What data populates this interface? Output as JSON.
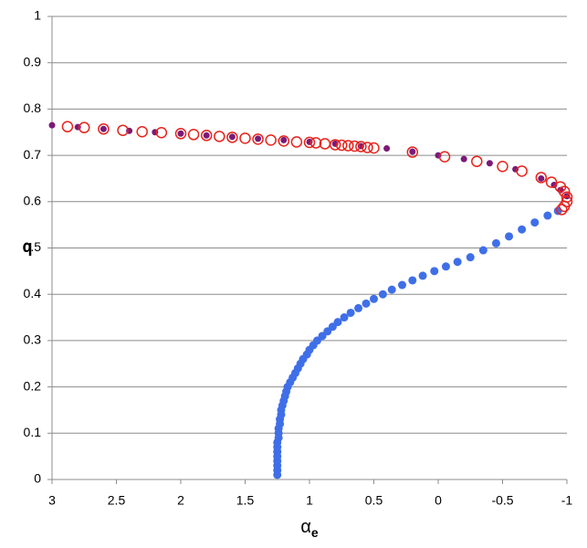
{
  "chart_data": {
    "type": "scatter",
    "x_label": "α",
    "x_label_subscript": "e",
    "y_label": "q",
    "xlim": [
      3,
      -1
    ],
    "ylim": [
      0,
      1
    ],
    "xticks": [
      3,
      2.5,
      2,
      1.5,
      1,
      0.5,
      0,
      -0.5,
      -1
    ],
    "yticks": [
      0,
      0.1,
      0.2,
      0.3,
      0.4,
      0.5,
      0.6,
      0.7,
      0.8,
      0.9,
      1
    ],
    "grid": true,
    "series": [
      {
        "color": "#3f6fe8",
        "marker": "filled",
        "size": 4.5,
        "x": [
          1.25,
          1.25,
          1.25,
          1.25,
          1.25,
          1.25,
          1.25,
          1.25,
          1.24,
          1.24,
          1.24,
          1.23,
          1.23,
          1.22,
          1.22,
          1.21,
          1.2,
          1.19,
          1.18,
          1.17,
          1.15,
          1.13,
          1.11,
          1.09,
          1.07,
          1.05,
          1.02,
          1.0,
          0.97,
          0.94,
          0.9,
          0.86,
          0.82,
          0.78,
          0.73,
          0.68,
          0.62,
          0.56,
          0.5,
          0.43,
          0.36,
          0.28,
          0.2,
          0.12,
          0.03,
          -0.06,
          -0.15,
          -0.25,
          -0.35,
          -0.45,
          -0.55,
          -0.65,
          -0.75,
          -0.85,
          -0.93
        ],
        "y": [
          0.01,
          0.02,
          0.03,
          0.04,
          0.05,
          0.06,
          0.07,
          0.08,
          0.09,
          0.1,
          0.11,
          0.12,
          0.13,
          0.14,
          0.15,
          0.16,
          0.17,
          0.18,
          0.19,
          0.2,
          0.21,
          0.22,
          0.23,
          0.24,
          0.25,
          0.26,
          0.27,
          0.28,
          0.29,
          0.3,
          0.31,
          0.32,
          0.33,
          0.34,
          0.35,
          0.36,
          0.37,
          0.38,
          0.39,
          0.4,
          0.41,
          0.42,
          0.43,
          0.44,
          0.45,
          0.46,
          0.47,
          0.48,
          0.495,
          0.51,
          0.525,
          0.54,
          0.555,
          0.57,
          0.58
        ]
      },
      {
        "color": "#7a1a78",
        "marker": "filled",
        "size": 3.5,
        "x": [
          3,
          2.8,
          2.6,
          2.4,
          2.2,
          2,
          1.8,
          1.6,
          1.4,
          1.2,
          1,
          0.8,
          0.6,
          0.4,
          0.2,
          0,
          -0.2,
          -0.4,
          -0.6,
          -0.8,
          -0.9,
          -0.95,
          -1
        ],
        "y": [
          0.765,
          0.761,
          0.757,
          0.753,
          0.75,
          0.747,
          0.743,
          0.74,
          0.736,
          0.733,
          0.729,
          0.725,
          0.72,
          0.715,
          0.708,
          0.7,
          0.692,
          0.683,
          0.67,
          0.65,
          0.636,
          0.625,
          0.612
        ]
      },
      {
        "color": "#e8231c",
        "marker": "open",
        "size": 5.5,
        "x": [
          2.88,
          2.75,
          2.6,
          2.45,
          2.3,
          2.15,
          2.0,
          1.9,
          1.8,
          1.7,
          1.6,
          1.5,
          1.4,
          1.3,
          1.2,
          1.1,
          1.0,
          0.95,
          0.88,
          0.8,
          0.75,
          0.7,
          0.65,
          0.6,
          0.55,
          0.5,
          0.2,
          -0.05,
          -0.3,
          -0.5,
          -0.65,
          -0.8,
          -0.88,
          -0.95,
          -0.98,
          -1.0,
          -1.0,
          -0.98,
          -0.96
        ],
        "y": [
          0.762,
          0.76,
          0.757,
          0.754,
          0.751,
          0.749,
          0.747,
          0.745,
          0.743,
          0.741,
          0.739,
          0.737,
          0.735,
          0.733,
          0.731,
          0.729,
          0.728,
          0.727,
          0.725,
          0.723,
          0.722,
          0.721,
          0.72,
          0.719,
          0.717,
          0.716,
          0.707,
          0.697,
          0.687,
          0.676,
          0.666,
          0.652,
          0.642,
          0.632,
          0.622,
          0.61,
          0.6,
          0.59,
          0.583
        ]
      }
    ]
  }
}
